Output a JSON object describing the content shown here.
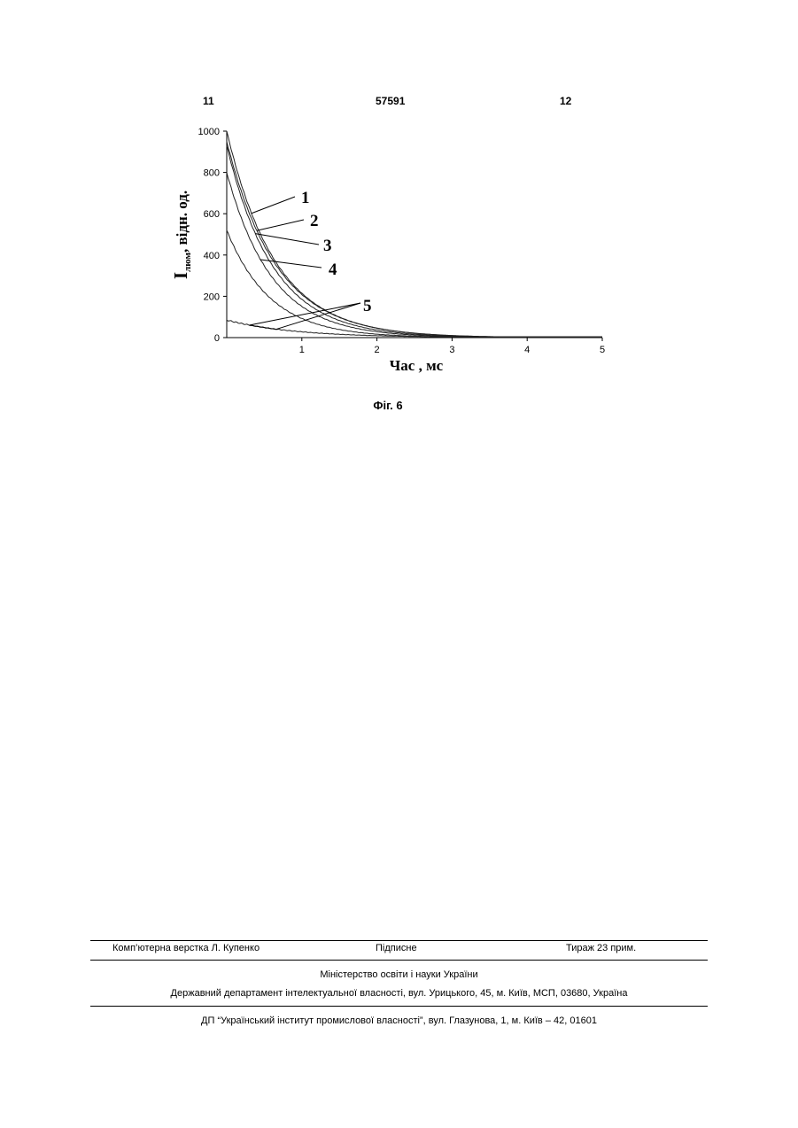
{
  "header": {
    "page_left": "11",
    "patent_number": "57591",
    "page_right": "12"
  },
  "figure": {
    "caption": "Фіг. 6"
  },
  "chart_data": {
    "type": "line",
    "title": "",
    "xlabel": "Час , мс",
    "ylabel_main": "I",
    "ylabel_sub": "люм",
    "ylabel_rest": ", відн. од.",
    "xlim": [
      0,
      5
    ],
    "ylim": [
      0,
      1000
    ],
    "x_ticks": [
      "1",
      "2",
      "3",
      "4",
      "5"
    ],
    "y_ticks": [
      "0",
      "200",
      "400",
      "600",
      "800",
      "1000"
    ],
    "grid": false,
    "series": [
      {
        "name": "1",
        "initial": 1000,
        "tau_ms": 0.65
      },
      {
        "name": "2",
        "initial": 950,
        "tau_ms": 0.66
      },
      {
        "name": "3",
        "initial": 930,
        "tau_ms": 0.62
      },
      {
        "name": "4",
        "initial": 800,
        "tau_ms": 0.6
      },
      {
        "name": "5",
        "initial": 520,
        "tau_ms": 0.58
      },
      {
        "name": "",
        "initial": 85,
        "tau_ms": 0.9
      }
    ],
    "callouts": [
      "1",
      "2",
      "3",
      "4",
      "5"
    ]
  },
  "footer": {
    "typesetter": "Комп’ютерна верстка Л. Купенко",
    "signed": "Підписне",
    "print_run": "Тираж 23 прим.",
    "ministry": "Міністерство освіти і науки України",
    "department": "Державний департамент інтелектуальної власності, вул. Урицького, 45, м. Київ, МСП, 03680, Україна",
    "institute": "ДП “Український інститут промислової власності”, вул. Глазунова, 1, м. Київ – 42, 01601"
  }
}
